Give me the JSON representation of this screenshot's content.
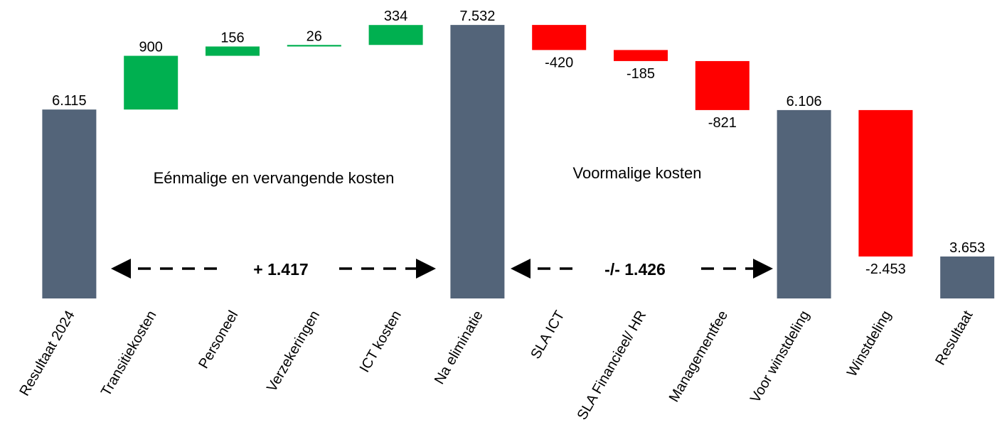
{
  "chart_data": {
    "type": "waterfall",
    "categories": [
      "Resultaat 2024",
      "Transitiekosten",
      "Personeel",
      "Verzekeringen",
      "ICT kosten",
      "Na eliminatie",
      "SLA ICT",
      "SLA Financieel/ HR",
      "Managementfee",
      "Voor winstdeling",
      "Winstdeling",
      "Resultaat"
    ],
    "values": [
      6115,
      900,
      156,
      26,
      334,
      7532,
      -420,
      -185,
      -821,
      6106,
      -2453,
      3653
    ],
    "value_labels": [
      "6.115",
      "900",
      "156",
      "26",
      "334",
      "7.532",
      "-420",
      "-185",
      "-821",
      "6.106",
      "-2.453",
      "3.653"
    ],
    "measure": [
      "total",
      "relative",
      "relative",
      "relative",
      "relative",
      "total",
      "relative",
      "relative",
      "relative",
      "total",
      "relative",
      "total"
    ],
    "colors": {
      "total": "#536479",
      "increase": "#00b050",
      "decrease": "#ff0000"
    },
    "ylim": [
      2950,
      7950
    ],
    "annotations": [
      "Eénmalige en vervangende kosten",
      "Voormalige kosten",
      "+ 1.417",
      "-/- 1.426"
    ]
  }
}
